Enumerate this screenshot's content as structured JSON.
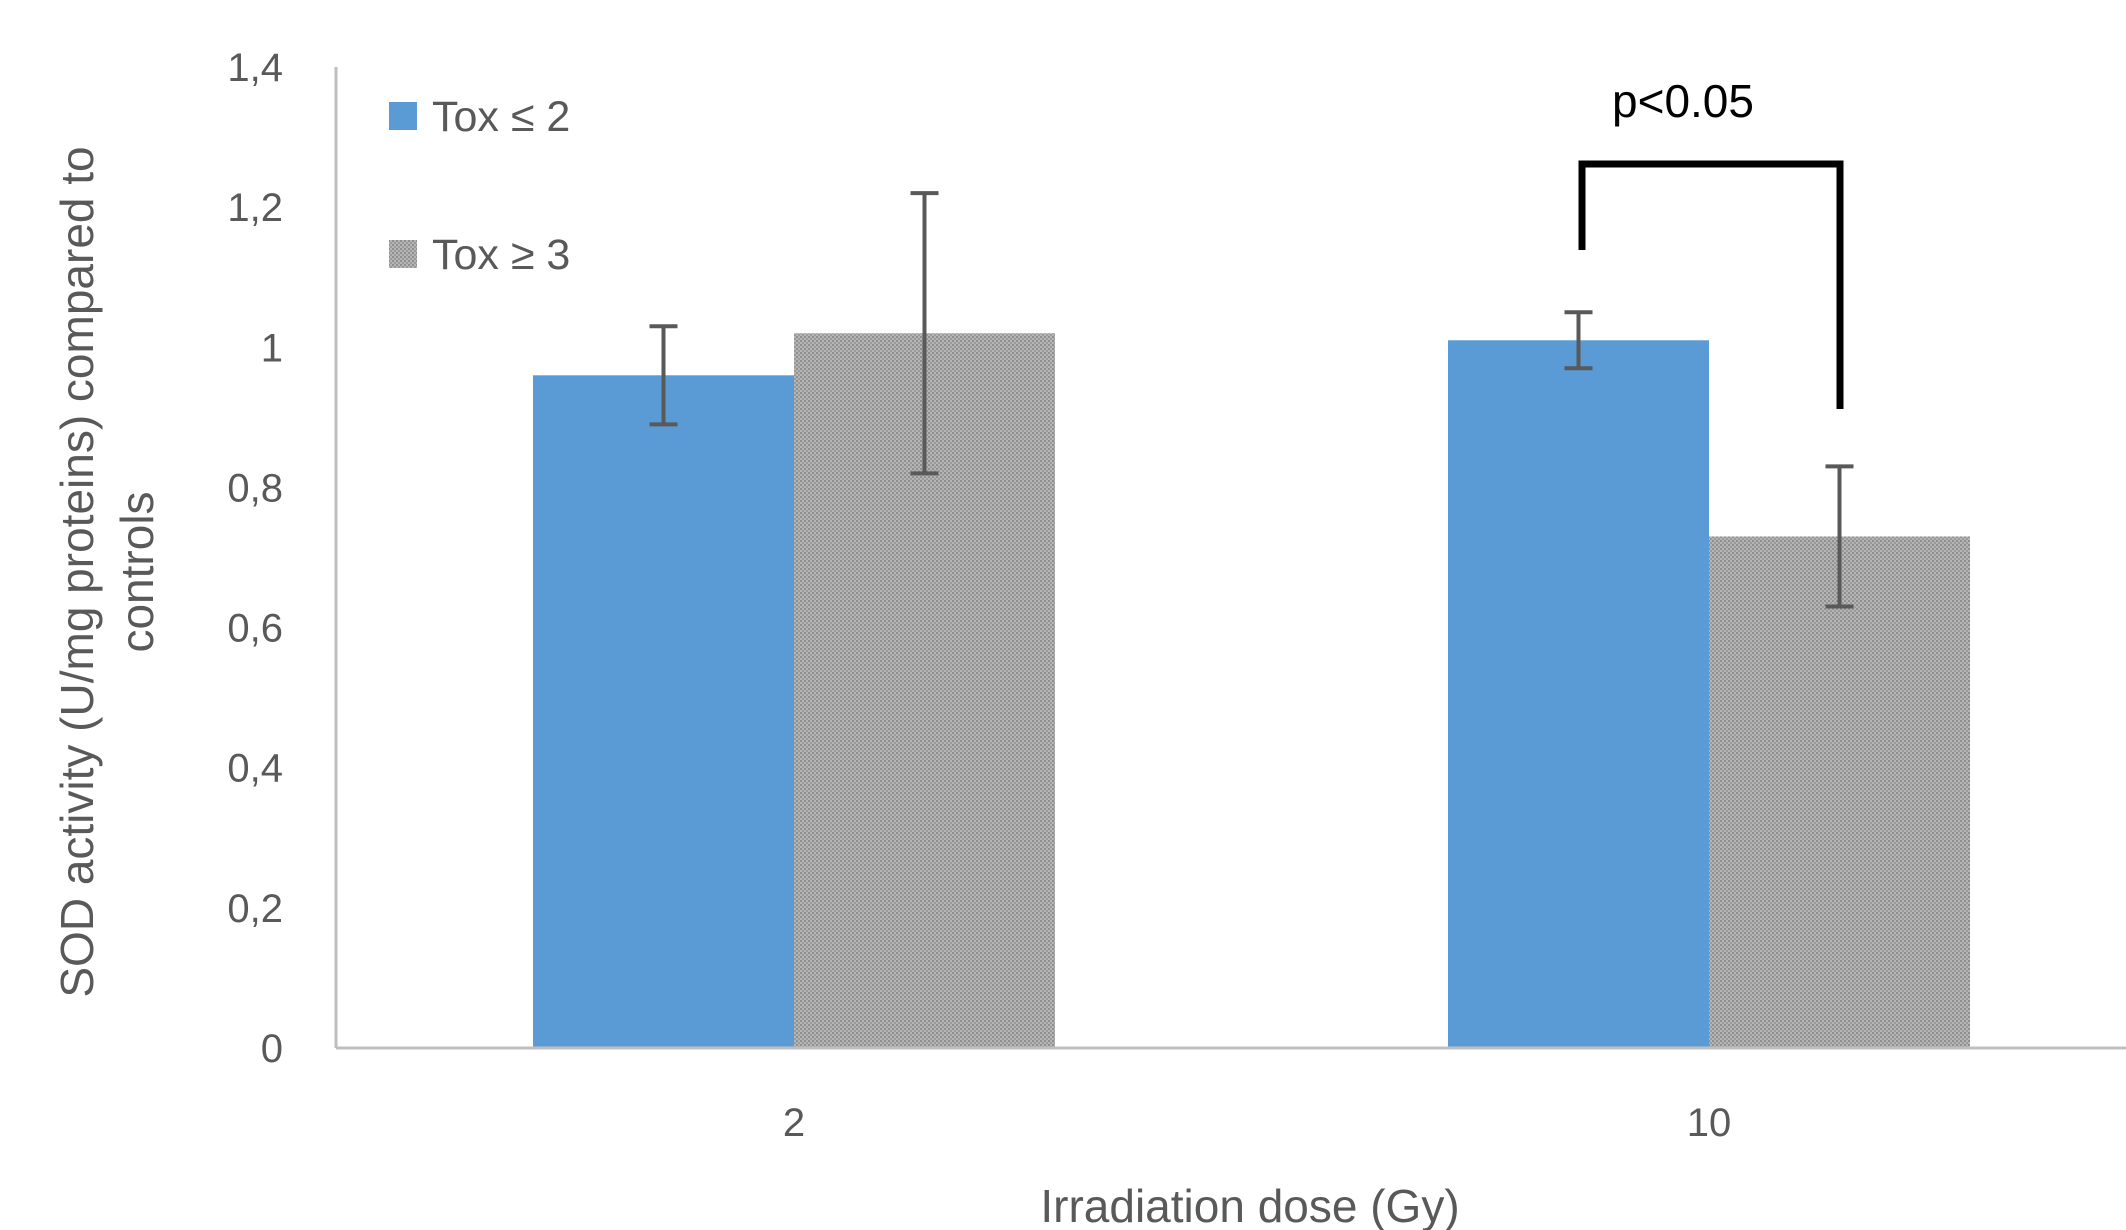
{
  "chart_data": {
    "type": "bar",
    "xlabel": "Irradiation dose (Gy)",
    "ylabel": "SOD activity (U/mg proteins) compared to controls",
    "ylabel_lines": [
      "SOD activity (U/mg proteins) compared to",
      "controls"
    ],
    "ylim": [
      0,
      1.4
    ],
    "yticks": [
      "0",
      "0,2",
      "0,4",
      "0,6",
      "0,8",
      "1",
      "1,2",
      "1,4"
    ],
    "ytick_values": [
      0,
      0.2,
      0.4,
      0.6,
      0.8,
      1.0,
      1.2,
      1.4
    ],
    "categories": [
      "2",
      "10"
    ],
    "series": [
      {
        "name": "Tox ≤ 2",
        "values": [
          0.96,
          1.01
        ],
        "errors": [
          0.07,
          0.04
        ],
        "color": "#5b9bd5",
        "pattern": "solid"
      },
      {
        "name": "Tox ≥ 3",
        "values": [
          1.02,
          0.73
        ],
        "errors": [
          0.2,
          0.1
        ],
        "color": "#a6a6a6",
        "pattern": "dotted"
      }
    ],
    "grid": false,
    "legend": "top-left",
    "annotations": [
      {
        "text": "p<0.05",
        "type": "significance-bracket",
        "category": "10"
      }
    ]
  }
}
